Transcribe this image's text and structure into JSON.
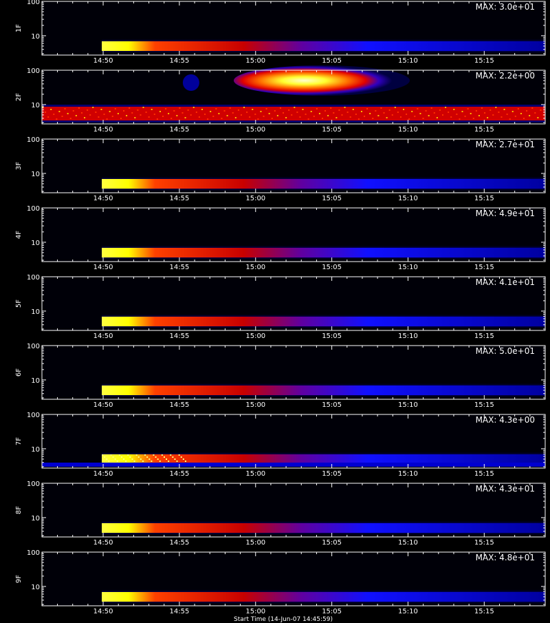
{
  "chart_data": {
    "type": "heatmap",
    "shared_x_ticks": [
      "14:50",
      "14:55",
      "15:00",
      "15:05",
      "15:10",
      "15:15"
    ],
    "y_ticks": [
      "10",
      "100"
    ],
    "y_scale": "log",
    "colormap": [
      "#000000",
      "#0000ff",
      "#ff0000",
      "#ffff00",
      "#ffffff"
    ],
    "panels": [
      {
        "label": "1F",
        "max_label": "MAX: 3.0e+01",
        "feature": "low-band"
      },
      {
        "label": "2F",
        "max_label": "MAX: 2.2e+00",
        "feature": "noisy-band-with-blob"
      },
      {
        "label": "3F",
        "max_label": "MAX: 2.7e+01",
        "feature": "low-band"
      },
      {
        "label": "4F",
        "max_label": "MAX: 4.9e+01",
        "feature": "low-band"
      },
      {
        "label": "5F",
        "max_label": "MAX: 4.1e+01",
        "feature": "low-band"
      },
      {
        "label": "6F",
        "max_label": "MAX: 5.0e+01",
        "feature": "low-band"
      },
      {
        "label": "7F",
        "max_label": "MAX: 4.3e+00",
        "feature": "speckled-band"
      },
      {
        "label": "8F",
        "max_label": "MAX: 4.3e+01",
        "feature": "low-band"
      },
      {
        "label": "9F",
        "max_label": "MAX: 4.8e+01",
        "feature": "low-band"
      }
    ]
  },
  "footer_text": "Start Time (14-Jun-07 14:45:59)"
}
